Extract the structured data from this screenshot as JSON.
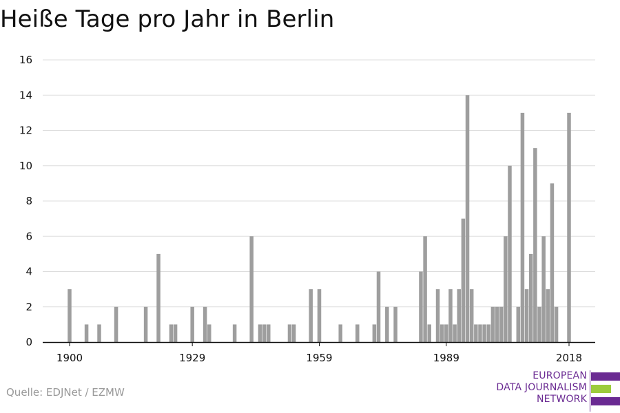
{
  "title": "Heiße Tage pro Jahr in Berlin",
  "source": "Quelle: EDJNet / EZMW",
  "logo": {
    "lines": [
      "EUROPEAN",
      "DATA JOURNALISM",
      "NETWORK"
    ],
    "colors": {
      "purple": "#6a2a92",
      "green": "#9ccc3c"
    }
  },
  "colors": {
    "bar": "#9e9e9e",
    "grid": "#dddddd",
    "axis": "#111111"
  },
  "chart_data": {
    "type": "bar",
    "title": "Heiße Tage pro Jahr in Berlin",
    "xlabel": "",
    "ylabel": "",
    "xlim": [
      1900,
      2018
    ],
    "ylim": [
      0,
      16
    ],
    "yticks": [
      0,
      2,
      4,
      6,
      8,
      10,
      12,
      14,
      16
    ],
    "xticks": [
      1900,
      1929,
      1959,
      1989,
      2018
    ],
    "grid": true,
    "x": [
      1900,
      1904,
      1907,
      1911,
      1918,
      1921,
      1924,
      1925,
      1929,
      1932,
      1933,
      1939,
      1943,
      1945,
      1946,
      1947,
      1952,
      1953,
      1957,
      1959,
      1964,
      1968,
      1972,
      1973,
      1975,
      1977,
      1983,
      1984,
      1985,
      1987,
      1988,
      1989,
      1990,
      1991,
      1992,
      1993,
      1994,
      1995,
      1996,
      1997,
      1998,
      1999,
      2000,
      2001,
      2002,
      2003,
      2004,
      2006,
      2007,
      2008,
      2009,
      2010,
      2011,
      2012,
      2013,
      2014,
      2015,
      2018
    ],
    "values": [
      3,
      1,
      1,
      2,
      2,
      5,
      1,
      1,
      2,
      2,
      1,
      1,
      6,
      1,
      1,
      1,
      1,
      1,
      3,
      3,
      1,
      1,
      1,
      4,
      2,
      2,
      4,
      6,
      1,
      3,
      1,
      1,
      3,
      1,
      3,
      7,
      14,
      3,
      1,
      1,
      1,
      1,
      2,
      2,
      2,
      6,
      10,
      2,
      13,
      3,
      5,
      11,
      2,
      6,
      3,
      9,
      2,
      13
    ]
  }
}
